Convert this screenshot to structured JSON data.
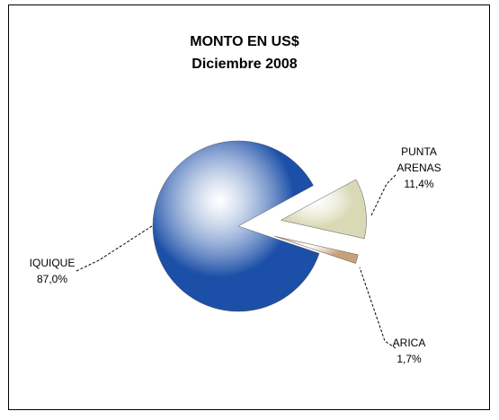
{
  "chart_data": {
    "type": "pie",
    "title": "MONTO EN US$",
    "subtitle": "Diciembre 2008",
    "categories": [
      "IQUIQUE",
      "PUNTA ARENAS",
      "ARICA"
    ],
    "values": [
      87.0,
      11.4,
      1.7
    ],
    "value_labels": [
      "87,0%",
      "11,4%",
      "1,7%"
    ],
    "colors": [
      "#1c4fa8",
      "#d9d9b6",
      "#c9a07a"
    ]
  }
}
